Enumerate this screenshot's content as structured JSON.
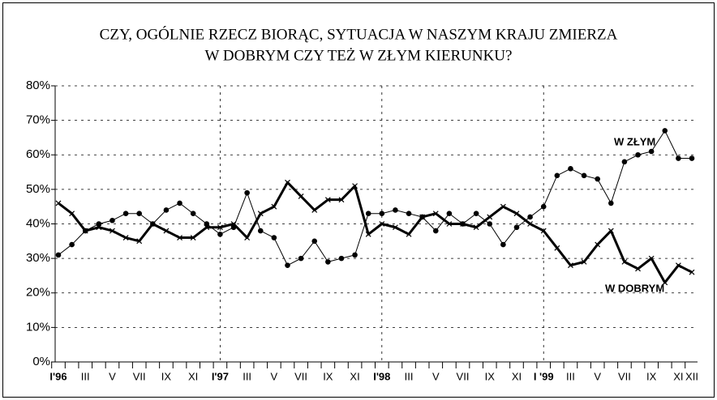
{
  "chart_data": {
    "type": "line",
    "title": [
      "CZY, OGÓLNIE RZECZ BIORĄC, SYTUACJA W NASZYM KRAJU ZMIERZA",
      "W DOBRYM CZY TEŻ W ZŁYM KIERUNKU?"
    ],
    "categories": [
      "I'96",
      null,
      "III",
      null,
      "V",
      null,
      "VII",
      null,
      "IX",
      null,
      "XI",
      null,
      "I'97",
      null,
      "III",
      null,
      "V",
      null,
      "VII",
      null,
      "IX",
      null,
      "XI",
      null,
      "I'98",
      null,
      "III",
      null,
      "V",
      null,
      "VII",
      null,
      "IX",
      null,
      "XI",
      null,
      "I '99",
      null,
      "III",
      null,
      "V",
      null,
      "VII",
      null,
      "IX",
      null,
      "XI",
      "XII"
    ],
    "series": [
      {
        "name": "W ZŁYM",
        "color": "#000000",
        "marker": "circle",
        "line_width": 1,
        "values": [
          31,
          34,
          38,
          40,
          41,
          43,
          43,
          40,
          44,
          46,
          43,
          40,
          37,
          39,
          49,
          38,
          36,
          28,
          30,
          35,
          29,
          30,
          31,
          43,
          43,
          44,
          43,
          42,
          38,
          43,
          40,
          43,
          40,
          34,
          39,
          42,
          45,
          54,
          56,
          54,
          53,
          46,
          58,
          60,
          61,
          67,
          59,
          59
        ]
      },
      {
        "name": "W DOBRYM",
        "color": "#000000",
        "marker": "x",
        "line_width": 3,
        "values": [
          46,
          43,
          38,
          39,
          38,
          36,
          35,
          40,
          38,
          36,
          36,
          39,
          39,
          40,
          36,
          43,
          45,
          52,
          48,
          44,
          47,
          47,
          51,
          37,
          40,
          39,
          37,
          42,
          43,
          40,
          40,
          39,
          42,
          45,
          43,
          40,
          38,
          33,
          28,
          29,
          34,
          38,
          29,
          27,
          30,
          23,
          28,
          26
        ]
      }
    ],
    "ylim": [
      0,
      80
    ],
    "yticks": [
      {
        "value": 0,
        "label": "0%"
      },
      {
        "value": 10,
        "label": "10%"
      },
      {
        "value": 20,
        "label": "20%"
      },
      {
        "value": 30,
        "label": "30%"
      },
      {
        "value": 40,
        "label": "40%"
      },
      {
        "value": 50,
        "label": "50%"
      },
      {
        "value": 60,
        "label": "60%"
      },
      {
        "value": 70,
        "label": "70%"
      },
      {
        "value": 80,
        "label": "80%"
      }
    ],
    "grid": true
  }
}
